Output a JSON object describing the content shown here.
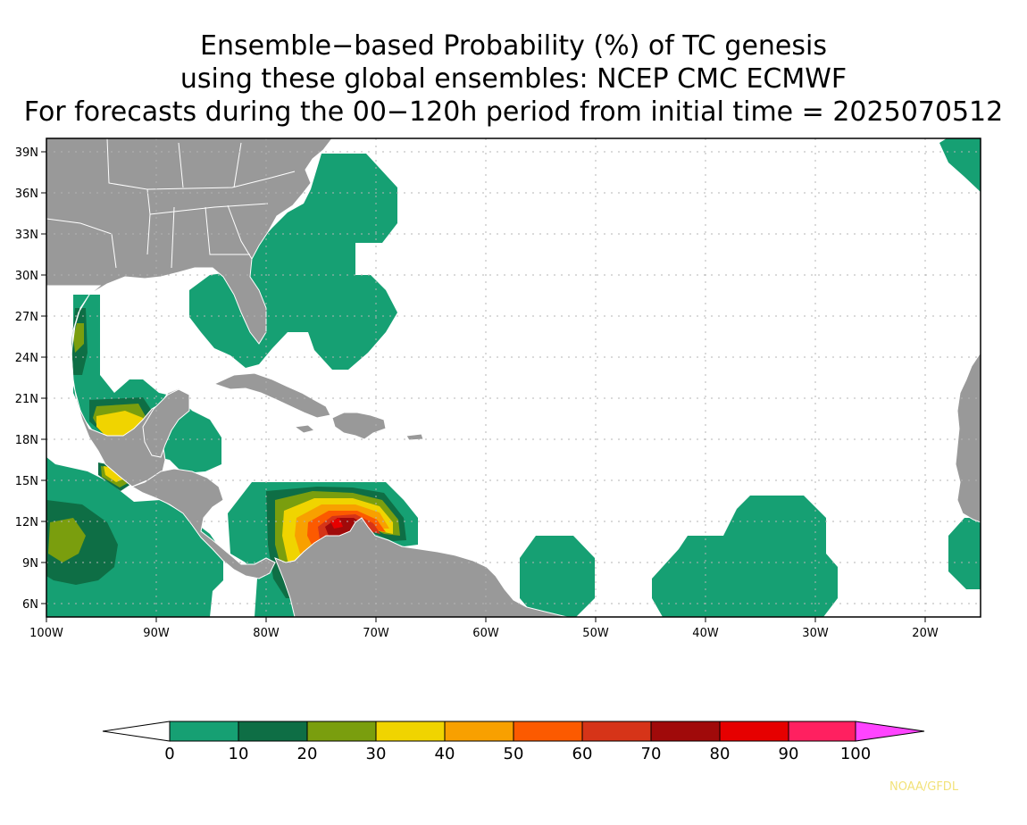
{
  "title": {
    "line1": "Ensemble−based Probability (%) of TC genesis",
    "line2": "using these global ensembles:   NCEP CMC ECMWF",
    "line3": "For forecasts during the 00−120h period from initial time = 2025070512"
  },
  "axes": {
    "lat_labels": [
      "39N",
      "36N",
      "33N",
      "30N",
      "27N",
      "24N",
      "21N",
      "18N",
      "15N",
      "12N",
      "9N",
      "6N"
    ],
    "lon_labels": [
      "100W",
      "90W",
      "80W",
      "70W",
      "60W",
      "50W",
      "40W",
      "30W",
      "20W"
    ]
  },
  "colors": {
    "land": "#999999",
    "ocean": "#ffffff",
    "border": "#ffffff"
  },
  "colorbar": {
    "tick_labels": [
      "0",
      "10",
      "20",
      "30",
      "40",
      "50",
      "60",
      "70",
      "80",
      "90",
      "100"
    ],
    "colors": [
      "#ffffff",
      "#16a073",
      "#0e6e45",
      "#7a9e0e",
      "#f0d400",
      "#f8a000",
      "#fc5a00",
      "#d63418",
      "#a00a0a",
      "#e60000",
      "#ff2060",
      "#ff44ff"
    ]
  },
  "credit": "NOAA/GFDL"
}
